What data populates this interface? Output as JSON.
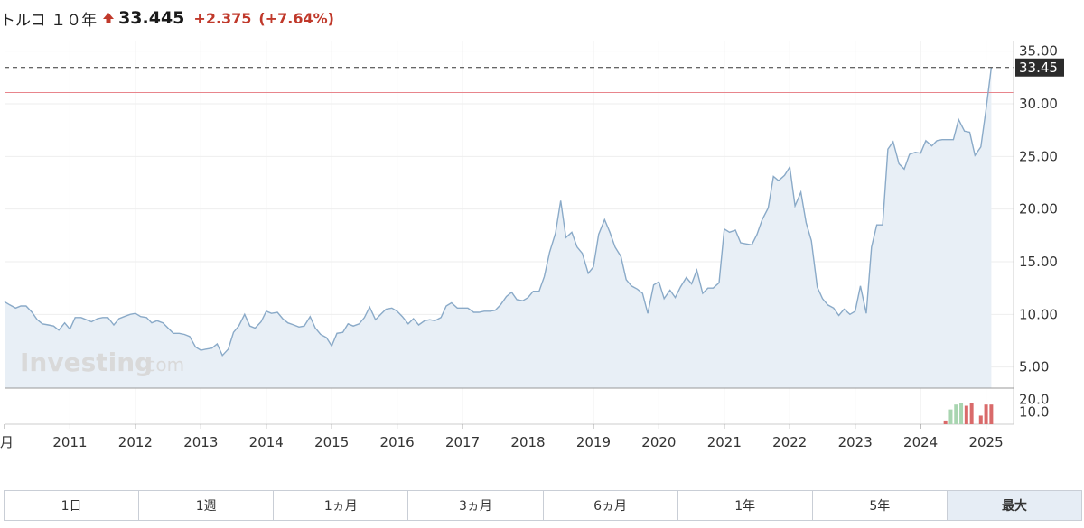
{
  "header": {
    "name": "トルコ １０年",
    "price": "33.445",
    "change": "+2.375",
    "change_pct": "(+7.64%)",
    "arrow_icon": "arrow-up-icon",
    "up_color": "#c0392b"
  },
  "watermark": {
    "main": "Investing",
    "sub": ".com"
  },
  "range_buttons": [
    {
      "label": "1日",
      "active": false
    },
    {
      "label": "1週",
      "active": false
    },
    {
      "label": "1ヵ月",
      "active": false
    },
    {
      "label": "3ヵ月",
      "active": false
    },
    {
      "label": "6ヵ月",
      "active": false
    },
    {
      "label": "1年",
      "active": false
    },
    {
      "label": "5年",
      "active": false
    },
    {
      "label": "最大",
      "active": true
    }
  ],
  "chart_data": {
    "type": "area",
    "title": "",
    "xlabel": "",
    "ylabel": "",
    "x_range": [
      2010.0,
      2025.42
    ],
    "ylim": [
      3.0,
      36.0
    ],
    "y_ticks": [
      {
        "value": 35,
        "label": "35.00"
      },
      {
        "value": 30,
        "label": "30.00"
      },
      {
        "value": 25,
        "label": "25.00"
      },
      {
        "value": 20,
        "label": "20.00"
      },
      {
        "value": 15,
        "label": "15.00"
      },
      {
        "value": 10,
        "label": "10.00"
      },
      {
        "value": 5,
        "label": "5.00"
      }
    ],
    "x_ticks": [
      {
        "value": 2010.0,
        "label": "月"
      },
      {
        "value": 2011.0,
        "label": "2011"
      },
      {
        "value": 2012.0,
        "label": "2012"
      },
      {
        "value": 2013.0,
        "label": "2013"
      },
      {
        "value": 2014.0,
        "label": "2014"
      },
      {
        "value": 2015.0,
        "label": "2015"
      },
      {
        "value": 2016.0,
        "label": "2016"
      },
      {
        "value": 2017.0,
        "label": "2017"
      },
      {
        "value": 2018.0,
        "label": "2018"
      },
      {
        "value": 2019.0,
        "label": "2019"
      },
      {
        "value": 2020.0,
        "label": "2020"
      },
      {
        "value": 2021.0,
        "label": "2021"
      },
      {
        "value": 2022.0,
        "label": "2022"
      },
      {
        "value": 2023.0,
        "label": "2023"
      },
      {
        "value": 2024.0,
        "label": "2024"
      },
      {
        "value": 2025.0,
        "label": "2025"
      }
    ],
    "current_price": 33.45,
    "current_price_label": "33.45",
    "reference_level": 31.07,
    "grid": true,
    "line_color": "#8aaac8",
    "fill_color": "#e8eff6",
    "reference_color": "#e8858c",
    "series": [
      {
        "values": [
          [
            2010.0,
            11.2
          ],
          [
            2010.08,
            10.9
          ],
          [
            2010.17,
            10.6
          ],
          [
            2010.25,
            10.8
          ],
          [
            2010.33,
            10.8
          ],
          [
            2010.42,
            10.2
          ],
          [
            2010.5,
            9.5
          ],
          [
            2010.58,
            9.1
          ],
          [
            2010.67,
            9.0
          ],
          [
            2010.75,
            8.9
          ],
          [
            2010.83,
            8.5
          ],
          [
            2010.92,
            9.2
          ],
          [
            2011.0,
            8.6
          ],
          [
            2011.08,
            9.7
          ],
          [
            2011.17,
            9.7
          ],
          [
            2011.25,
            9.5
          ],
          [
            2011.33,
            9.3
          ],
          [
            2011.42,
            9.6
          ],
          [
            2011.5,
            9.7
          ],
          [
            2011.58,
            9.7
          ],
          [
            2011.67,
            9.0
          ],
          [
            2011.75,
            9.6
          ],
          [
            2011.83,
            9.8
          ],
          [
            2011.92,
            10.0
          ],
          [
            2012.0,
            10.1
          ],
          [
            2012.08,
            9.8
          ],
          [
            2012.17,
            9.7
          ],
          [
            2012.25,
            9.2
          ],
          [
            2012.33,
            9.4
          ],
          [
            2012.42,
            9.2
          ],
          [
            2012.5,
            8.7
          ],
          [
            2012.58,
            8.2
          ],
          [
            2012.67,
            8.2
          ],
          [
            2012.75,
            8.1
          ],
          [
            2012.83,
            7.9
          ],
          [
            2012.92,
            6.9
          ],
          [
            2013.0,
            6.6
          ],
          [
            2013.08,
            6.7
          ],
          [
            2013.17,
            6.8
          ],
          [
            2013.25,
            7.2
          ],
          [
            2013.33,
            6.1
          ],
          [
            2013.42,
            6.7
          ],
          [
            2013.5,
            8.3
          ],
          [
            2013.58,
            8.9
          ],
          [
            2013.67,
            10.0
          ],
          [
            2013.75,
            8.9
          ],
          [
            2013.83,
            8.7
          ],
          [
            2013.92,
            9.3
          ],
          [
            2014.0,
            10.3
          ],
          [
            2014.08,
            10.1
          ],
          [
            2014.17,
            10.2
          ],
          [
            2014.25,
            9.6
          ],
          [
            2014.33,
            9.2
          ],
          [
            2014.42,
            9.0
          ],
          [
            2014.5,
            8.8
          ],
          [
            2014.58,
            8.9
          ],
          [
            2014.67,
            9.8
          ],
          [
            2014.75,
            8.7
          ],
          [
            2014.83,
            8.1
          ],
          [
            2014.92,
            7.8
          ],
          [
            2015.0,
            7.0
          ],
          [
            2015.08,
            8.2
          ],
          [
            2015.17,
            8.3
          ],
          [
            2015.25,
            9.1
          ],
          [
            2015.33,
            8.9
          ],
          [
            2015.42,
            9.1
          ],
          [
            2015.5,
            9.7
          ],
          [
            2015.58,
            10.7
          ],
          [
            2015.67,
            9.5
          ],
          [
            2015.75,
            10.0
          ],
          [
            2015.83,
            10.5
          ],
          [
            2015.92,
            10.6
          ],
          [
            2016.0,
            10.3
          ],
          [
            2016.08,
            9.8
          ],
          [
            2016.17,
            9.1
          ],
          [
            2016.25,
            9.6
          ],
          [
            2016.33,
            9.0
          ],
          [
            2016.42,
            9.4
          ],
          [
            2016.5,
            9.5
          ],
          [
            2016.58,
            9.4
          ],
          [
            2016.67,
            9.7
          ],
          [
            2016.75,
            10.8
          ],
          [
            2016.83,
            11.1
          ],
          [
            2016.92,
            10.6
          ],
          [
            2017.0,
            10.6
          ],
          [
            2017.08,
            10.6
          ],
          [
            2017.17,
            10.2
          ],
          [
            2017.25,
            10.2
          ],
          [
            2017.33,
            10.3
          ],
          [
            2017.42,
            10.3
          ],
          [
            2017.5,
            10.4
          ],
          [
            2017.58,
            10.9
          ],
          [
            2017.67,
            11.7
          ],
          [
            2017.75,
            12.1
          ],
          [
            2017.83,
            11.4
          ],
          [
            2017.92,
            11.3
          ],
          [
            2018.0,
            11.6
          ],
          [
            2018.08,
            12.2
          ],
          [
            2018.17,
            12.2
          ],
          [
            2018.25,
            13.6
          ],
          [
            2018.33,
            15.9
          ],
          [
            2018.42,
            17.7
          ],
          [
            2018.5,
            20.8
          ],
          [
            2018.58,
            17.3
          ],
          [
            2018.67,
            17.8
          ],
          [
            2018.75,
            16.4
          ],
          [
            2018.83,
            15.8
          ],
          [
            2018.92,
            13.9
          ],
          [
            2019.0,
            14.5
          ],
          [
            2019.08,
            17.6
          ],
          [
            2019.17,
            19.0
          ],
          [
            2019.25,
            17.8
          ],
          [
            2019.33,
            16.4
          ],
          [
            2019.42,
            15.5
          ],
          [
            2019.5,
            13.3
          ],
          [
            2019.58,
            12.7
          ],
          [
            2019.67,
            12.4
          ],
          [
            2019.75,
            12.0
          ],
          [
            2019.83,
            10.1
          ],
          [
            2019.92,
            12.8
          ],
          [
            2020.0,
            13.1
          ],
          [
            2020.08,
            11.5
          ],
          [
            2020.17,
            12.3
          ],
          [
            2020.25,
            11.6
          ],
          [
            2020.33,
            12.6
          ],
          [
            2020.42,
            13.5
          ],
          [
            2020.5,
            12.9
          ],
          [
            2020.58,
            14.2
          ],
          [
            2020.67,
            12.0
          ],
          [
            2020.75,
            12.5
          ],
          [
            2020.83,
            12.5
          ],
          [
            2020.92,
            13.0
          ],
          [
            2021.0,
            18.1
          ],
          [
            2021.08,
            17.8
          ],
          [
            2021.17,
            18.0
          ],
          [
            2021.25,
            16.8
          ],
          [
            2021.33,
            16.7
          ],
          [
            2021.42,
            16.6
          ],
          [
            2021.5,
            17.6
          ],
          [
            2021.58,
            19.0
          ],
          [
            2021.67,
            20.1
          ],
          [
            2021.75,
            23.1
          ],
          [
            2021.83,
            22.7
          ],
          [
            2021.92,
            23.2
          ],
          [
            2022.0,
            24.0
          ],
          [
            2022.08,
            20.3
          ],
          [
            2022.17,
            21.6
          ],
          [
            2022.25,
            18.7
          ],
          [
            2022.33,
            17.0
          ],
          [
            2022.42,
            12.6
          ],
          [
            2022.5,
            11.5
          ],
          [
            2022.58,
            10.9
          ],
          [
            2022.67,
            10.6
          ],
          [
            2022.75,
            9.9
          ],
          [
            2022.83,
            10.5
          ],
          [
            2022.92,
            10.0
          ],
          [
            2023.0,
            10.3
          ],
          [
            2023.08,
            12.7
          ],
          [
            2023.17,
            10.1
          ],
          [
            2023.25,
            16.4
          ],
          [
            2023.33,
            18.5
          ],
          [
            2023.42,
            18.5
          ],
          [
            2023.5,
            25.7
          ],
          [
            2023.58,
            26.4
          ],
          [
            2023.67,
            24.3
          ],
          [
            2023.75,
            23.8
          ],
          [
            2023.83,
            25.2
          ],
          [
            2023.92,
            25.4
          ],
          [
            2024.0,
            25.3
          ],
          [
            2024.08,
            26.5
          ],
          [
            2024.17,
            26.0
          ],
          [
            2024.25,
            26.5
          ],
          [
            2024.33,
            26.6
          ],
          [
            2024.42,
            26.6
          ],
          [
            2024.5,
            26.6
          ],
          [
            2024.58,
            28.5
          ],
          [
            2024.67,
            27.4
          ],
          [
            2024.75,
            27.3
          ],
          [
            2024.83,
            25.1
          ],
          [
            2024.92,
            25.9
          ],
          [
            2025.0,
            29.5
          ],
          [
            2025.08,
            33.45
          ]
        ]
      }
    ],
    "volume": {
      "ticks": [
        {
          "value": 20,
          "label": "20.0"
        },
        {
          "value": 10,
          "label": "10.0"
        }
      ],
      "up_color": "#a8d5b0",
      "down_color": "#d96a6a",
      "bars": [
        {
          "x": 2024.38,
          "v": 3,
          "dir": "down"
        },
        {
          "x": 2024.46,
          "v": 12,
          "dir": "up"
        },
        {
          "x": 2024.54,
          "v": 16,
          "dir": "up"
        },
        {
          "x": 2024.62,
          "v": 17,
          "dir": "up"
        },
        {
          "x": 2024.7,
          "v": 15,
          "dir": "down"
        },
        {
          "x": 2024.78,
          "v": 17,
          "dir": "down"
        },
        {
          "x": 2024.92,
          "v": 7,
          "dir": "down"
        },
        {
          "x": 2025.0,
          "v": 16,
          "dir": "down"
        },
        {
          "x": 2025.08,
          "v": 16,
          "dir": "down"
        }
      ]
    }
  }
}
